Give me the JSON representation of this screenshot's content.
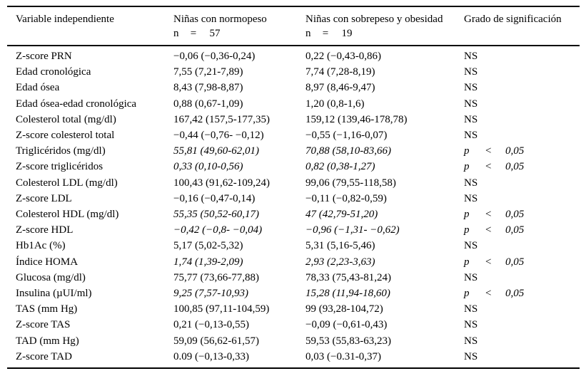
{
  "table": {
    "headers": {
      "col1": "Variable independiente",
      "col2": {
        "title": "Niñas con normopeso",
        "n_label": "n",
        "eq": "=",
        "n_value": "57"
      },
      "col3": {
        "title": "Niñas con sobrepeso y obesidad",
        "n_label": "n",
        "eq": "=",
        "n_value": "19"
      },
      "col4": "Grado de significación"
    },
    "sig_tokens": {
      "p": "p",
      "lt": "<",
      "val": "0,05",
      "ns": "NS"
    },
    "rows": [
      {
        "variable": "Z-score PRN",
        "normopeso": "−0,06 (−0,36-0,24)",
        "sobrepeso": "0,22 (−0,43-0,86)",
        "sig": "NS",
        "italic": false
      },
      {
        "variable": "Edad cronológica",
        "normopeso": "7,55 (7,21-7,89)",
        "sobrepeso": "7,74 (7,28-8,19)",
        "sig": "NS",
        "italic": false
      },
      {
        "variable": "Edad ósea",
        "normopeso": "8,43 (7,98-8,87)",
        "sobrepeso": "8,97 (8,46-9,47)",
        "sig": "NS",
        "italic": false
      },
      {
        "variable": "Edad ósea-edad cronológica",
        "normopeso": "0,88 (0,67-1,09)",
        "sobrepeso": "1,20 (0,8-1,6)",
        "sig": "NS",
        "italic": false
      },
      {
        "variable": "Colesterol total (mg/dl)",
        "normopeso": "167,42 (157,5-177,35)",
        "sobrepeso": "159,12 (139,46-178,78)",
        "sig": "NS",
        "italic": false
      },
      {
        "variable": "Z-score colesterol total",
        "normopeso": "−0,44 (−0,76- −0,12)",
        "sobrepeso": "−0,55 (−1,16-0,07)",
        "sig": "NS",
        "italic": false
      },
      {
        "variable": "Triglicéridos (mg/dl)",
        "normopeso": "55,81 (49,60-62,01)",
        "sobrepeso": "70,88 (58,10-83,66)",
        "sig": "p<0,05",
        "italic": true
      },
      {
        "variable": "Z-score triglicéridos",
        "normopeso": "0,33 (0,10-0,56)",
        "sobrepeso": "0,82 (0,38-1,27)",
        "sig": "p<0,05",
        "italic": true
      },
      {
        "variable": "Colesterol LDL (mg/dl)",
        "normopeso": "100,43 (91,62-109,24)",
        "sobrepeso": "99,06 (79,55-118,58)",
        "sig": "NS",
        "italic": false
      },
      {
        "variable": "Z-score LDL",
        "normopeso": "−0,16 (−0,47-0,14)",
        "sobrepeso": "−0,11 (−0,82-0,59)",
        "sig": "NS",
        "italic": false
      },
      {
        "variable": "Colesterol HDL (mg/dl)",
        "normopeso": "55,35 (50,52-60,17)",
        "sobrepeso": "47 (42,79-51,20)",
        "sig": "p<0,05",
        "italic": true
      },
      {
        "variable": "Z-score HDL",
        "normopeso": "−0,42 (−0,8- −0,04)",
        "sobrepeso": "−0,96 (−1,31- −0,62)",
        "sig": "p<0,05",
        "italic": true
      },
      {
        "variable": "Hb1Ac (%)",
        "normopeso": "5,17 (5,02-5,32)",
        "sobrepeso": "5,31 (5,16-5,46)",
        "sig": "NS",
        "italic": false
      },
      {
        "variable": "Índice HOMA",
        "normopeso": "1,74 (1,39-2,09)",
        "sobrepeso": "2,93 (2,23-3,63)",
        "sig": "p<0,05",
        "italic": true
      },
      {
        "variable": "Glucosa (mg/dl)",
        "normopeso": "75,77 (73,66-77,88)",
        "sobrepeso": "78,33 (75,43-81,24)",
        "sig": "NS",
        "italic": false
      },
      {
        "variable": "Insulina (µUI/ml)",
        "normopeso": "9,25 (7,57-10,93)",
        "sobrepeso": "15,28 (11,94-18,60)",
        "sig": "p<0,05",
        "italic": true
      },
      {
        "variable": "TAS (mm Hg)",
        "normopeso": "100,85 (97,11-104,59)",
        "sobrepeso": "99 (93,28-104,72)",
        "sig": "NS",
        "italic": false
      },
      {
        "variable": "Z-score TAS",
        "normopeso": "0,21 (−0,13-0,55)",
        "sobrepeso": "−0,09 (−0,61-0,43)",
        "sig": "NS",
        "italic": false
      },
      {
        "variable": "TAD (mm Hg)",
        "normopeso": "59,09 (56,62-61,57)",
        "sobrepeso": "59,53 (55,83-63,23)",
        "sig": "NS",
        "italic": false
      },
      {
        "variable": "Z-score TAD",
        "normopeso": "0.09 (−0,13-0,33)",
        "sobrepeso": "0,03 (−0.31-0,37)",
        "sig": "NS",
        "italic": false
      }
    ]
  }
}
